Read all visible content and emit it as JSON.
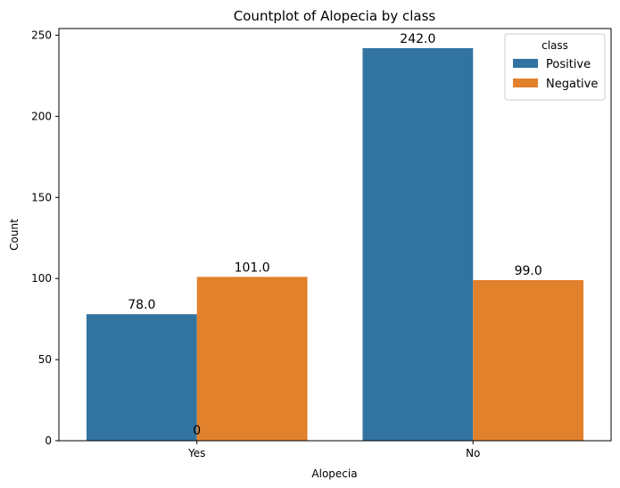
{
  "chart_data": {
    "type": "bar",
    "title": "Countplot of Alopecia by class",
    "xlabel": "Alopecia",
    "ylabel": "Count",
    "categories": [
      "Yes",
      "No"
    ],
    "series": [
      {
        "name": "Positive",
        "values": [
          78,
          242
        ],
        "color": "#3274a1",
        "labels": [
          "78.0",
          "242.0"
        ]
      },
      {
        "name": "Negative",
        "values": [
          101,
          99
        ],
        "color": "#e1812c",
        "labels": [
          "101.0",
          "99.0"
        ]
      }
    ],
    "ylim": [
      0,
      254.1
    ],
    "yticks": [
      "0",
      "50",
      "100",
      "150",
      "200",
      "250"
    ],
    "extra_label": "0",
    "legend": {
      "title": "class",
      "placement": "top-right"
    },
    "grid": false
  }
}
